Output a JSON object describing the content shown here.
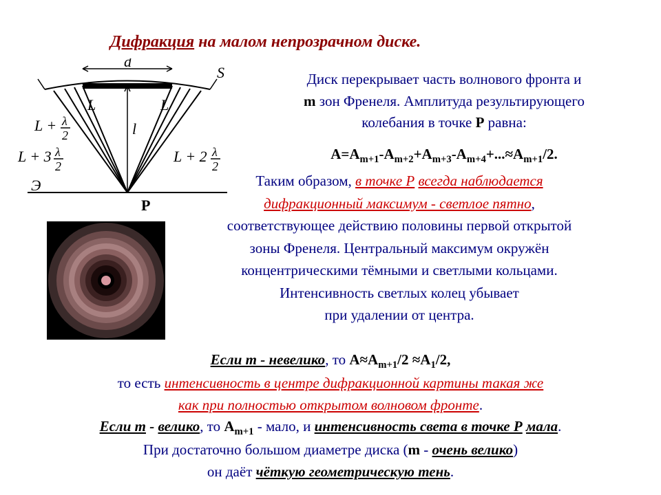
{
  "title": {
    "word1": "Дифракция",
    "rest": " на малом непрозрачном диске."
  },
  "diagram": {
    "labels": {
      "d": "d",
      "S": "S",
      "L": "L",
      "l": "l",
      "E": "Э",
      "P": "P"
    },
    "L2": {
      "num": "λ",
      "den": "2"
    },
    "L3": {
      "num": "λ",
      "den": "2",
      "coef": "3"
    },
    "L2r": {
      "num": "λ",
      "den": "2",
      "coef": "2"
    },
    "stroke": "#000000",
    "font": "italic 20px 'Times New Roman'"
  },
  "para1": {
    "l1a": "Диск перекрывает часть волнового фронта и",
    "l2a": "m",
    "l2b": " зон Френеля. Амплитуда результирующего",
    "l3": "колебания в точке ",
    "l3p": "Р",
    "l3e": " равна:"
  },
  "formula": {
    "pre": "A=A",
    "s1": "m+1",
    "t1": "-A",
    "s2": "m+2",
    "t2": "+A",
    "s3": "m+3",
    "t3": "-A",
    "s4": "m+4",
    "t4": "+...≈A",
    "s5": "m+1",
    "t5": "/2."
  },
  "para2": {
    "a": "Таким образом, ",
    "b": "в точке Р",
    "c": " ",
    "d": "всегда наблюдается",
    "e": "дифракционный максимум - светлое пятно",
    "f": ",",
    "g": "соответствующее действию половины первой открытой",
    "h": "зоны Френеля.  Центральный максимум окружён",
    "i": "концентрическими тёмными и светлыми кольцами.",
    "j": "Интенсивность светлых колец убывает",
    "k": "при удалении от центра."
  },
  "pattern": {
    "rings": [
      {
        "r": 84,
        "c": "#3a2a2a"
      },
      {
        "r": 72,
        "c": "#6b4a4a"
      },
      {
        "r": 62,
        "c": "#8a6464"
      },
      {
        "r": 54,
        "c": "#a88080"
      },
      {
        "r": 46,
        "c": "#8a6060"
      },
      {
        "r": 38,
        "c": "#5a3a3a"
      },
      {
        "r": 30,
        "c": "#3a2020"
      },
      {
        "r": 22,
        "c": "#1a0a0a"
      },
      {
        "r": 12,
        "c": "#000000"
      }
    ],
    "center": {
      "r": 7,
      "c": "#d898a0"
    }
  },
  "para3": {
    "l1a": "Если m - невелико",
    "l1b": ", то ",
    "l1c": "A≈A",
    "l1d": "m+1",
    "l1e": "/2 ≈A",
    "l1f": "1",
    "l1g": "/2,",
    "l2a": "то есть ",
    "l2b": "интенсивность в центре дифракционной картины такая же",
    "l3": "как при полностью открытом волновом фронте",
    "l4a": "Если m",
    "l4b": " - ",
    "l4c": "велико",
    "l4d": ", то ",
    "l4e": "A",
    "l4f": "m+1",
    "l4g": " - мало, и ",
    "l4h": "интенсивность света в точке Р",
    "l4i": " ",
    "l4j": "мала",
    "l4k": ".",
    "l5a": "При достаточно большом диаметре диска (",
    "l5b": "m",
    "l5c": " - ",
    "l5d": "очень велико",
    "l5e": ")",
    "l6a": "он даёт ",
    "l6b": "чёткую геометрическую тень",
    "l6c": "."
  }
}
